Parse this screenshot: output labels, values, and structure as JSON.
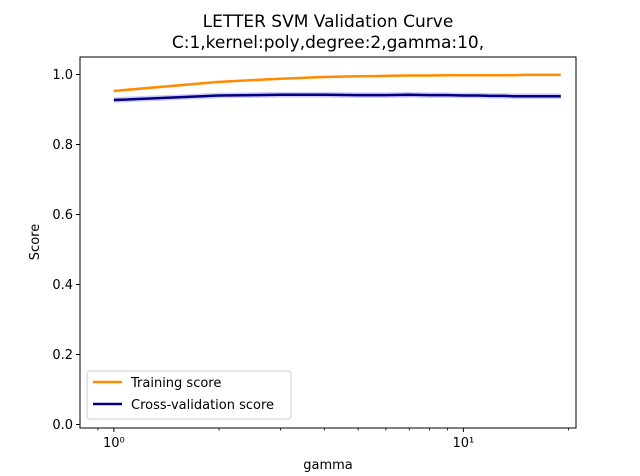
{
  "chart_data": {
    "type": "line",
    "title": "LETTER SVM Validation Curve",
    "subtitle": "C:1,kernel:poly,degree:2,gamma:10,",
    "xlabel": "gamma",
    "ylabel": "Score",
    "xscale": "log",
    "xlim": [
      0.8,
      21
    ],
    "ylim": [
      -0.01,
      1.05
    ],
    "x_major_ticks": [
      1,
      10
    ],
    "x_major_tick_labels": [
      "10⁰",
      "10¹"
    ],
    "y_ticks": [
      0.0,
      0.2,
      0.4,
      0.6,
      0.8,
      1.0
    ],
    "y_tick_labels": [
      "0.0",
      "0.2",
      "0.4",
      "0.6",
      "0.8",
      "1.0"
    ],
    "x": [
      1,
      2,
      3,
      4,
      5,
      6,
      7,
      8,
      9,
      10,
      11,
      12,
      13,
      14,
      15,
      16,
      17,
      18,
      19
    ],
    "series": [
      {
        "name": "Training score",
        "color": "#ff8c00",
        "band_color": "#ff8c00",
        "values": [
          0.953,
          0.979,
          0.988,
          0.993,
          0.995,
          0.996,
          0.997,
          0.997,
          0.998,
          0.998,
          0.998,
          0.998,
          0.998,
          0.998,
          0.999,
          0.999,
          0.999,
          0.999,
          0.999
        ],
        "band": 0.003
      },
      {
        "name": "Cross-validation score",
        "color": "#000080",
        "band_color": "#7b68ee",
        "values": [
          0.927,
          0.94,
          0.942,
          0.942,
          0.941,
          0.941,
          0.942,
          0.941,
          0.941,
          0.94,
          0.94,
          0.939,
          0.939,
          0.938,
          0.938,
          0.938,
          0.938,
          0.938,
          0.938
        ],
        "band": 0.008
      }
    ],
    "legend": "lower-left",
    "grid": false
  }
}
